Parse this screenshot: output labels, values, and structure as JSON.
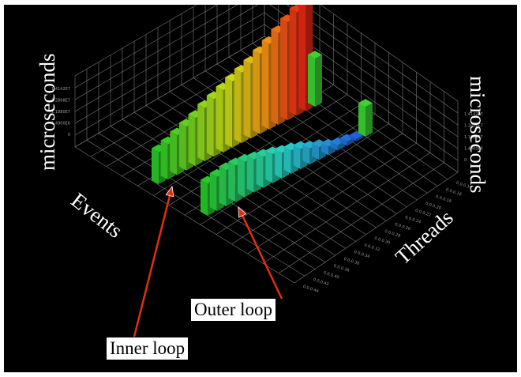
{
  "chart_data": {
    "type": "bar",
    "labels": {
      "z_left": "microseconds",
      "z_right": "microseconds",
      "x": "Events",
      "y": "Threads"
    },
    "annotations": {
      "inner": "Inner loop",
      "outer": "Outer loop"
    },
    "z_ticks": [
      "0",
      "1.4900E6",
      "1.1880E7",
      "1.2888E7",
      "1.4142E7"
    ],
    "y_ticks": [
      "0.0.0.14",
      "0.0.0.16",
      "0.0.0.18",
      "0.0.0.20",
      "0.0.0.22",
      "0.0.0.24",
      "0.0.0.26",
      "0.0.0.28",
      "0.0.0.30",
      "0.0.0.32",
      "0.0.0.34",
      "0.0.0.36",
      "0.0.0.38",
      "0.0.0.40",
      "0.0.0.42",
      "0.0.0.44"
    ],
    "series": [
      {
        "name": "Inner loop",
        "values": [
          0.3,
          0.33,
          0.37,
          0.41,
          0.45,
          0.5,
          0.54,
          0.58,
          0.62,
          0.66,
          0.7,
          0.75,
          0.8,
          0.86,
          0.92,
          0.97,
          1.0,
          0.45
        ]
      },
      {
        "name": "Outer loop",
        "values": [
          0.3,
          0.32,
          0.34,
          0.34,
          0.33,
          0.31,
          0.29,
          0.27,
          0.24,
          0.22,
          0.19,
          0.15,
          0.12,
          0.08,
          0.05,
          0.04,
          0.02,
          0.28
        ]
      }
    ],
    "colors": {
      "background": "#000000",
      "grid": "#7a7a7a",
      "arrow": "#e03010"
    }
  }
}
